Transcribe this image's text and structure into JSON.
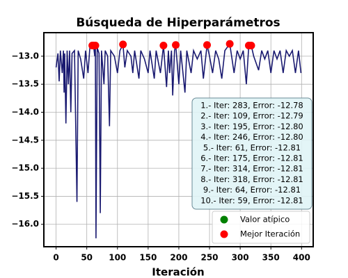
{
  "chart_data": {
    "type": "line",
    "title": "Búsqueda de Hiperparámetros",
    "x_label": "Iteración",
    "xlim": [
      -19.95,
      418.95
    ],
    "ylim": [
      -16.4,
      -12.58
    ],
    "xticks": [
      0,
      50,
      100,
      150,
      200,
      250,
      300,
      350,
      400
    ],
    "yticks": [
      {
        "value": -16.0,
        "label": "−16.0"
      },
      {
        "value": -15.5,
        "label": "−15.5"
      },
      {
        "value": -15.0,
        "label": "−15.0"
      },
      {
        "value": -14.5,
        "label": "−14.5"
      },
      {
        "value": -14.0,
        "label": "−14.0"
      },
      {
        "value": -13.5,
        "label": "−13.5"
      },
      {
        "value": -13.0,
        "label": "−13.0"
      }
    ],
    "grid": true,
    "legend_loc": "lower right",
    "series": [
      {
        "type": "line",
        "color": "#191970",
        "x": [
          0,
          3,
          5,
          7,
          10,
          12,
          13,
          14,
          16,
          18,
          20,
          22,
          24,
          26,
          30,
          34,
          36,
          40,
          45,
          48,
          52,
          55,
          59,
          61,
          63,
          64,
          65,
          67,
          70,
          72,
          74,
          78,
          80,
          84,
          87,
          89,
          95,
          100,
          104,
          109,
          112,
          116,
          122,
          125,
          128,
          135,
          138,
          144,
          150,
          153,
          160,
          163,
          170,
          175,
          180,
          183,
          185,
          188,
          190,
          193,
          195,
          200,
          203,
          210,
          213,
          220,
          224,
          230,
          236,
          240,
          246,
          250,
          255,
          260,
          265,
          270,
          275,
          283,
          286,
          290,
          295,
          300,
          305,
          310,
          314,
          318,
          322,
          330,
          335,
          340,
          345,
          350,
          355,
          360,
          365,
          370,
          375,
          380,
          385,
          390,
          395,
          399
        ],
        "values": [
          -13.2,
          -12.95,
          -13.45,
          -12.9,
          -13.3,
          -12.9,
          -13.65,
          -12.95,
          -14.2,
          -12.9,
          -13.5,
          -12.9,
          -14.0,
          -12.95,
          -12.9,
          -15.6,
          -12.9,
          -13.05,
          -13.4,
          -12.9,
          -13.3,
          -12.85,
          -12.81,
          -12.81,
          -13.0,
          -12.81,
          -16.25,
          -12.85,
          -12.95,
          -15.8,
          -12.9,
          -13.5,
          -12.9,
          -13.0,
          -14.25,
          -12.9,
          -13.0,
          -13.3,
          -12.9,
          -12.79,
          -13.2,
          -12.9,
          -13.0,
          -13.3,
          -12.9,
          -13.4,
          -12.9,
          -13.05,
          -13.3,
          -12.9,
          -13.4,
          -12.9,
          -13.3,
          -12.81,
          -13.55,
          -12.9,
          -13.3,
          -12.9,
          -13.7,
          -12.9,
          -12.8,
          -13.5,
          -12.9,
          -13.65,
          -12.9,
          -13.3,
          -12.9,
          -13.05,
          -12.9,
          -13.4,
          -12.8,
          -13.0,
          -13.3,
          -12.9,
          -13.05,
          -13.4,
          -12.9,
          -12.78,
          -13.0,
          -13.3,
          -12.9,
          -13.05,
          -12.9,
          -13.5,
          -12.81,
          -12.81,
          -13.0,
          -13.25,
          -12.9,
          -13.05,
          -12.9,
          -13.3,
          -12.9,
          -13.05,
          -12.9,
          -13.3,
          -12.9,
          -13.0,
          -12.9,
          -13.3,
          -12.9,
          -13.3
        ]
      },
      {
        "type": "scatter",
        "name": "Valor atípico",
        "color": "green",
        "x": [],
        "values": []
      },
      {
        "type": "scatter",
        "name": "Mejor Iteración",
        "color": "red",
        "x": [
          283,
          109,
          195,
          246,
          61,
          175,
          314,
          318,
          64,
          59
        ],
        "values": [
          -12.78,
          -12.79,
          -12.8,
          -12.8,
          -12.81,
          -12.81,
          -12.81,
          -12.81,
          -12.81,
          -12.81
        ]
      }
    ],
    "annotation": {
      "lines": [
        "1.- Iter: 283, Error: -12.78",
        "2.- Iter: 109, Error: -12.79",
        "3.- Iter: 195, Error: -12.80",
        "4.- Iter: 246, Error: -12.80",
        "5.- Iter: 61, Error: -12.81",
        "6.- Iter: 175, Error: -12.81",
        "7.- Iter: 314, Error: -12.81",
        "8.- Iter: 318, Error: -12.81",
        "9.- Iter: 64, Error: -12.81",
        "10.- Iter: 59, Error: -12.81"
      ]
    }
  }
}
